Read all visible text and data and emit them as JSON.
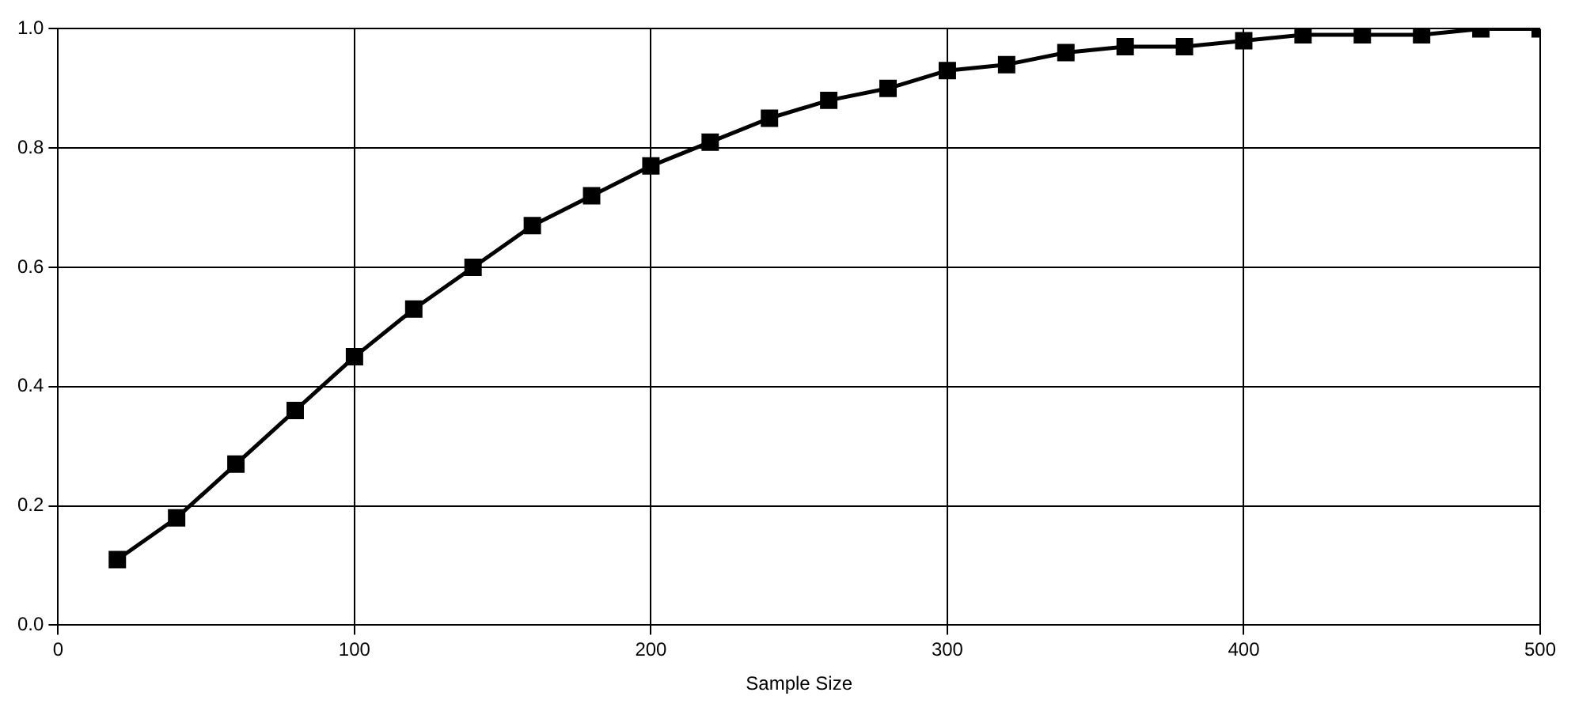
{
  "chart_data": {
    "type": "line",
    "xlabel": "Sample Size",
    "series": [
      {
        "color": "#000000",
        "x": [
          20,
          40,
          60,
          80,
          100,
          120,
          140,
          160,
          180,
          200,
          220,
          240,
          260,
          280,
          300,
          320,
          340,
          360,
          380,
          400,
          420,
          440,
          460,
          480,
          500
        ],
        "values": [
          0.11,
          0.18,
          0.27,
          0.36,
          0.45,
          0.53,
          0.6,
          0.67,
          0.72,
          0.77,
          0.81,
          0.85,
          0.88,
          0.9,
          0.93,
          0.94,
          0.96,
          0.97,
          0.97,
          0.98,
          0.99,
          0.99,
          0.99,
          1.0,
          1.0
        ]
      }
    ],
    "xlim": [
      0,
      500
    ],
    "xticks": [
      0,
      100,
      200,
      300,
      400,
      500
    ],
    "ylim": [
      0,
      1
    ],
    "yticks": [
      {
        "value": 0,
        "label": "0.0"
      },
      0.2,
      0.4,
      0.6,
      0.8,
      {
        "value": 1,
        "label": "1.0"
      }
    ],
    "grid": true,
    "legend": false,
    "marker": "square",
    "line_style": "solid"
  }
}
